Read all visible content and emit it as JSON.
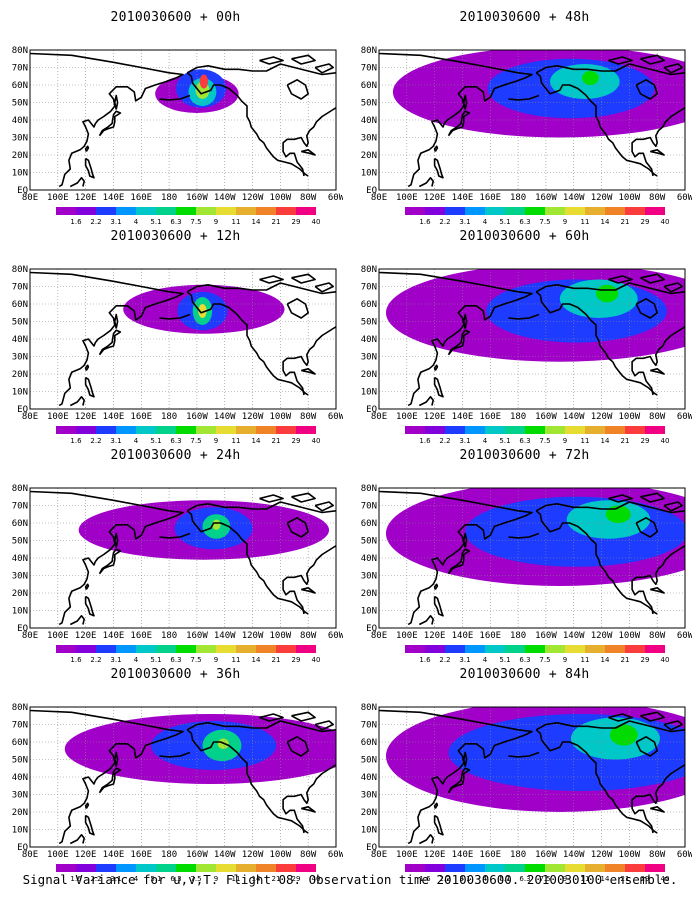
{
  "figure": {
    "caption": "Signal Variance for u,v,T. Flight 08. Observation time 2010030600. 2010030100 ensemble."
  },
  "lat_labels": [
    "80N",
    "70N",
    "60N",
    "50N",
    "40N",
    "30N",
    "20N",
    "10N",
    "EQ"
  ],
  "lon_labels": [
    "80E",
    "100E",
    "120E",
    "140E",
    "160E",
    "180",
    "160W",
    "140W",
    "120W",
    "100W",
    "80W",
    "60W"
  ],
  "colorbar": {
    "levels": [
      "1.6",
      "2.2",
      "3.1",
      "4",
      "5.1",
      "6.3",
      "7.5",
      "9",
      "11",
      "14",
      "21",
      "29",
      "40"
    ],
    "colors": [
      "#a000c8",
      "#8200dc",
      "#1e3cff",
      "#0096ff",
      "#00c8c8",
      "#00d28c",
      "#00dc00",
      "#a0e632",
      "#e6dc32",
      "#e6af2d",
      "#f08228",
      "#fa3c3c",
      "#f00082"
    ]
  },
  "panels": [
    {
      "title": "2010030600 + 00h",
      "blobs": [
        {
          "lon": 200,
          "lat": 55,
          "rx": 30,
          "ry": 11,
          "level": 0
        },
        {
          "lon": 203,
          "lat": 58,
          "rx": 18,
          "ry": 11,
          "level": 2
        },
        {
          "lon": 204,
          "lat": 56,
          "rx": 10,
          "ry": 8,
          "level": 4
        },
        {
          "lon": 204,
          "lat": 57,
          "rx": 5,
          "ry": 5,
          "level": 7
        },
        {
          "lon": 205,
          "lat": 62,
          "rx": 3,
          "ry": 4,
          "level": 11
        }
      ]
    },
    {
      "title": "2010030600 + 12h",
      "blobs": [
        {
          "lon": 205,
          "lat": 57,
          "rx": 58,
          "ry": 14,
          "level": 0
        },
        {
          "lon": 204,
          "lat": 56,
          "rx": 18,
          "ry": 11,
          "level": 2
        },
        {
          "lon": 204,
          "lat": 56,
          "rx": 7,
          "ry": 8,
          "level": 5
        },
        {
          "lon": 204,
          "lat": 56,
          "rx": 3,
          "ry": 4,
          "level": 8
        }
      ]
    },
    {
      "title": "2010030600 + 24h",
      "blobs": [
        {
          "lon": 205,
          "lat": 56,
          "rx": 90,
          "ry": 17,
          "level": 0
        },
        {
          "lon": 212,
          "lat": 57,
          "rx": 28,
          "ry": 12,
          "level": 2
        },
        {
          "lon": 214,
          "lat": 58,
          "rx": 10,
          "ry": 7,
          "level": 5
        },
        {
          "lon": 214,
          "lat": 59,
          "rx": 3,
          "ry": 3,
          "level": 7
        }
      ]
    },
    {
      "title": "2010030600 + 36h",
      "blobs": [
        {
          "lon": 210,
          "lat": 56,
          "rx": 105,
          "ry": 20,
          "level": 0
        },
        {
          "lon": 212,
          "lat": 58,
          "rx": 45,
          "ry": 14,
          "level": 2
        },
        {
          "lon": 218,
          "lat": 58,
          "rx": 14,
          "ry": 9,
          "level": 5
        },
        {
          "lon": 219,
          "lat": 59,
          "rx": 4,
          "ry": 3,
          "level": 7
        }
      ]
    },
    {
      "title": "2010030600 + 48h",
      "blobs": [
        {
          "lon": 210,
          "lat": 56,
          "rx": 120,
          "ry": 26,
          "level": 0
        },
        {
          "lon": 218,
          "lat": 58,
          "rx": 60,
          "ry": 17,
          "level": 2
        },
        {
          "lon": 228,
          "lat": 62,
          "rx": 25,
          "ry": 10,
          "level": 4
        },
        {
          "lon": 232,
          "lat": 64,
          "rx": 6,
          "ry": 4,
          "level": 6
        }
      ]
    },
    {
      "title": "2010030600 + 60h",
      "blobs": [
        {
          "lon": 210,
          "lat": 55,
          "rx": 125,
          "ry": 28,
          "level": 0
        },
        {
          "lon": 222,
          "lat": 56,
          "rx": 65,
          "ry": 18,
          "level": 2
        },
        {
          "lon": 238,
          "lat": 63,
          "rx": 28,
          "ry": 11,
          "level": 4
        },
        {
          "lon": 244,
          "lat": 66,
          "rx": 8,
          "ry": 5,
          "level": 6
        }
      ]
    },
    {
      "title": "2010030600 + 72h",
      "blobs": [
        {
          "lon": 210,
          "lat": 54,
          "rx": 125,
          "ry": 30,
          "level": 0
        },
        {
          "lon": 222,
          "lat": 55,
          "rx": 80,
          "ry": 20,
          "level": 2
        },
        {
          "lon": 245,
          "lat": 62,
          "rx": 30,
          "ry": 11,
          "level": 4
        },
        {
          "lon": 252,
          "lat": 65,
          "rx": 9,
          "ry": 5,
          "level": 6
        }
      ]
    },
    {
      "title": "2010030600 + 84h",
      "blobs": [
        {
          "lon": 210,
          "lat": 52,
          "rx": 125,
          "ry": 32,
          "level": 0
        },
        {
          "lon": 225,
          "lat": 54,
          "rx": 95,
          "ry": 22,
          "level": 2
        },
        {
          "lon": 250,
          "lat": 62,
          "rx": 32,
          "ry": 12,
          "level": 4
        },
        {
          "lon": 256,
          "lat": 64,
          "rx": 10,
          "ry": 6,
          "level": 6
        }
      ]
    }
  ]
}
